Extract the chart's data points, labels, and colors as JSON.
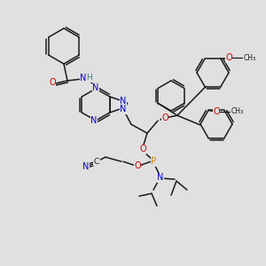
{
  "bg_color": "#e0e0e0",
  "bond_color": "#1a1a1a",
  "N_color": "#0000cc",
  "O_color": "#cc0000",
  "P_color": "#cc8800",
  "C_color": "#1a1a1a",
  "H_color": "#3a8080",
  "figsize": [
    3.0,
    3.0
  ],
  "dpi": 100,
  "xlim": [
    0,
    300
  ],
  "ylim": [
    0,
    300
  ]
}
